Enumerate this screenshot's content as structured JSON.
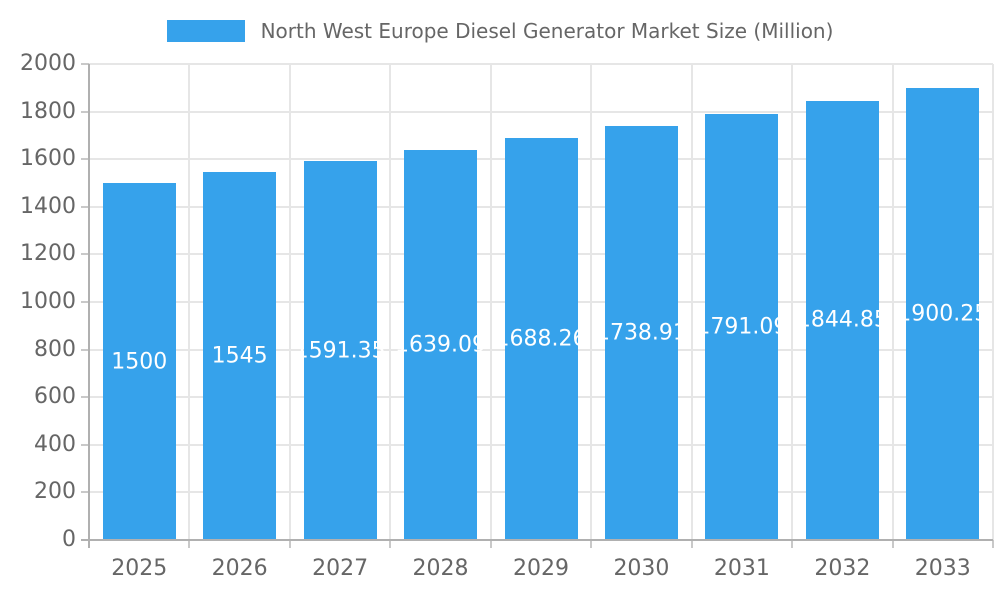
{
  "chart_data": {
    "type": "bar",
    "title": "North West Europe Diesel Generator Market Size (Million)",
    "categories": [
      "2025",
      "2026",
      "2027",
      "2028",
      "2029",
      "2030",
      "2031",
      "2032",
      "2033"
    ],
    "values": [
      1500,
      1545,
      1591.35,
      1639.09,
      1688.26,
      1738.91,
      1791.09,
      1844.85,
      1900.25
    ],
    "value_labels": [
      "1500",
      "1545",
      "1591.35",
      "1639.09",
      "1688.26",
      "1738.91",
      "1791.09",
      "1844.85",
      "1900.25"
    ],
    "xlabel": "",
    "ylabel": "",
    "ylim": [
      0,
      2000
    ],
    "ytick_step": 200,
    "yticks": [
      0,
      200,
      400,
      600,
      800,
      1000,
      1200,
      1400,
      1600,
      1800,
      2000
    ],
    "grid": true,
    "legend_position": "top",
    "value_label_position": "center-inside",
    "colors": {
      "bar_fill": "#36a2eb",
      "value_label_text": "#ffffff",
      "axis_text": "#666666",
      "gridline": "#e6e6e6",
      "axis_line": "#b0b0b0",
      "tick_mark": "#c9c9c9",
      "background": "#ffffff"
    }
  }
}
